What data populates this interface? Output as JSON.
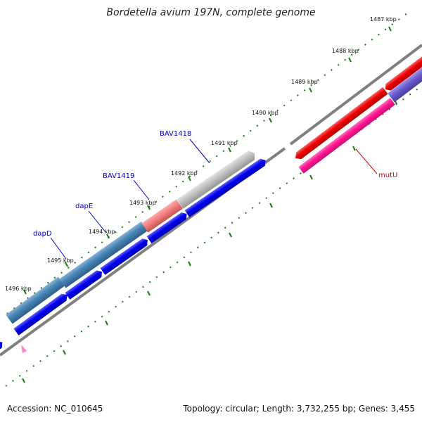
{
  "title": "Bordetella avium 197N, complete genome",
  "footer": {
    "accession": "Accession: NC_010645",
    "stats": "Topology: circular; Length: 3,732,255 bp; Genes: 3,455"
  },
  "ticks": [
    {
      "label": "1487 kbp"
    },
    {
      "label": "1488 kbp"
    },
    {
      "label": "1489 kbp"
    },
    {
      "label": "1490 kbp"
    },
    {
      "label": "1491 kbp"
    },
    {
      "label": "1492 kbp"
    },
    {
      "label": "1493 kbp"
    },
    {
      "label": "1494 kbp"
    },
    {
      "label": "1495 kbp"
    },
    {
      "label": "1496 kbp"
    }
  ],
  "gene_labels": [
    {
      "name": "BAV1418",
      "color": "#0000cc"
    },
    {
      "name": "BAV1419",
      "color": "#0000cc"
    },
    {
      "name": "dapE",
      "color": "#0000cc"
    },
    {
      "name": "dapD",
      "color": "#0000cc"
    },
    {
      "name": "mutU",
      "color": "#cc0000"
    }
  ],
  "colors": {
    "tick": "#1a7a1a",
    "backbone": "#808080",
    "cds": "#0000ee",
    "feature_red": "#ee0000",
    "feature_magenta": "#ff1493",
    "feature_steelblue": "#4682b4",
    "feature_gray": "#c0c0c0",
    "feature_salmon": "#f08080",
    "feature_slate": "#6a5acd"
  }
}
